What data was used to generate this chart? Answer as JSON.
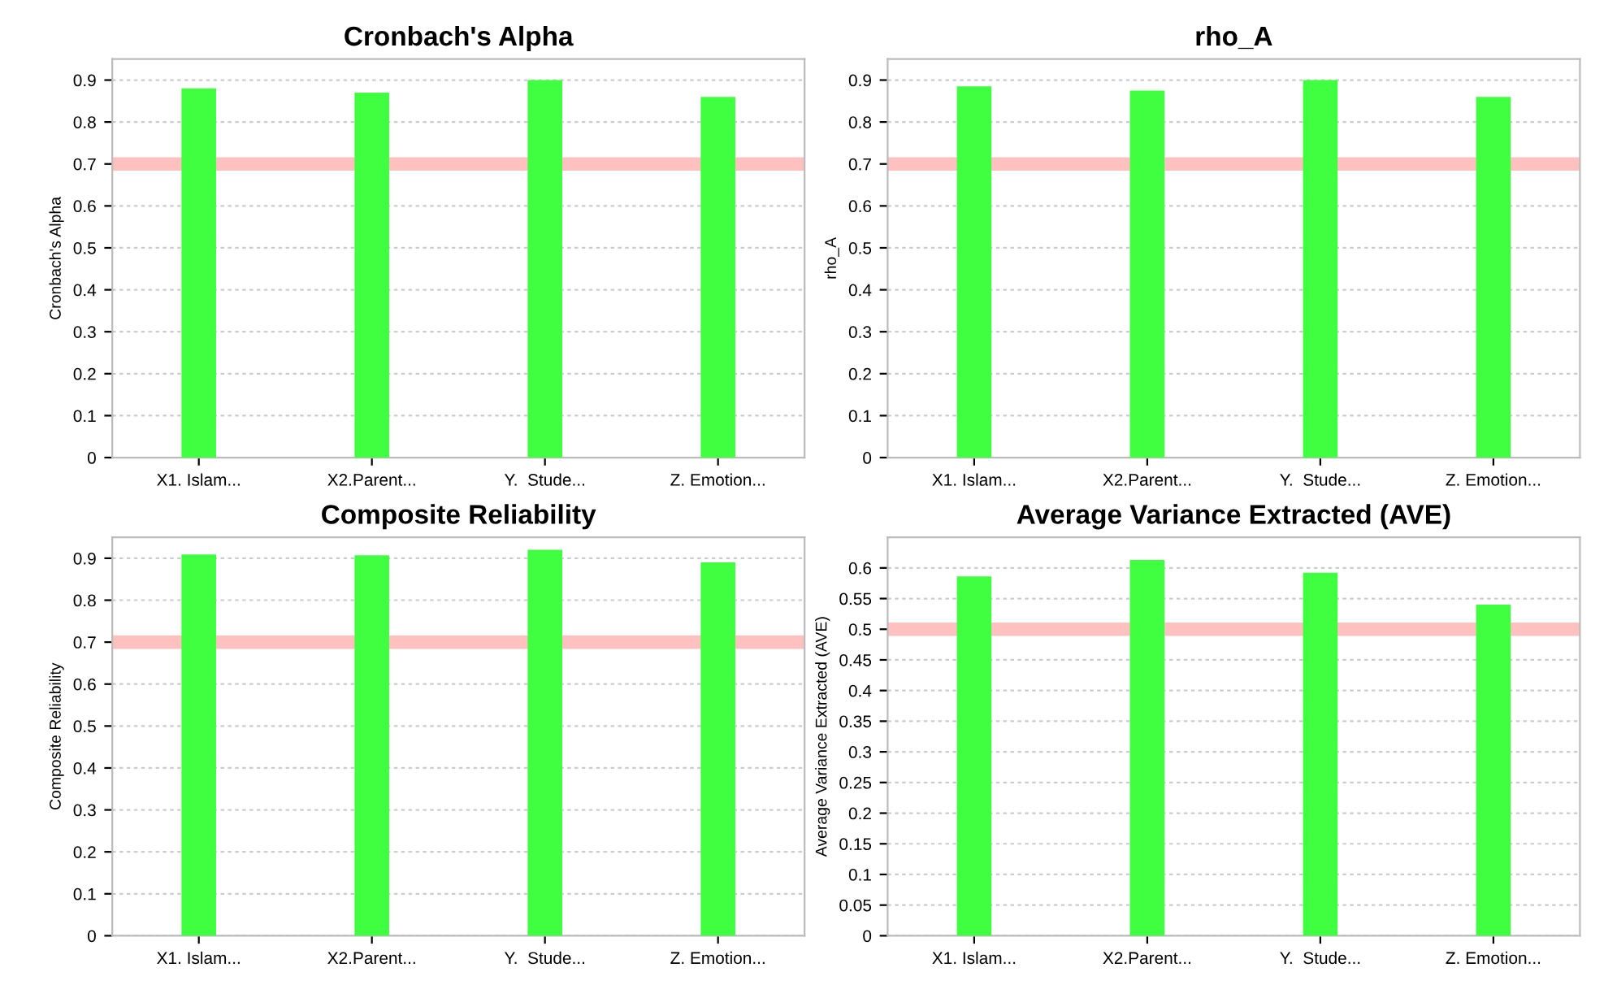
{
  "chart_data": [
    {
      "type": "bar",
      "title": "Cronbach's Alpha",
      "ylabel": "Cronbach's Alpha",
      "categories": [
        "X1. Islam...",
        "X2.Parent...",
        "Y.  Stude...",
        "Z. Emotion..."
      ],
      "values": [
        0.88,
        0.87,
        0.9,
        0.86
      ],
      "color": "#40ff40",
      "ylim": [
        0,
        0.95
      ],
      "yticks": [
        0,
        0.1,
        0.2,
        0.3,
        0.4,
        0.5,
        0.6,
        0.7,
        0.8,
        0.9
      ],
      "grid": "y",
      "ref_lines": [
        {
          "axis": "y",
          "value": 0.7,
          "color": "#ffc0c0"
        }
      ]
    },
    {
      "type": "bar",
      "title": "rho_A",
      "ylabel": "rho_A",
      "categories": [
        "X1. Islam...",
        "X2.Parent...",
        "Y.  Stude...",
        "Z. Emotion..."
      ],
      "values": [
        0.885,
        0.875,
        0.9,
        0.86
      ],
      "color": "#40ff40",
      "ylim": [
        0,
        0.95
      ],
      "yticks": [
        0,
        0.1,
        0.2,
        0.3,
        0.4,
        0.5,
        0.6,
        0.7,
        0.8,
        0.9
      ],
      "grid": "y",
      "ref_lines": [
        {
          "axis": "y",
          "value": 0.7,
          "color": "#ffc0c0"
        }
      ]
    },
    {
      "type": "bar",
      "title": "Composite Reliability",
      "ylabel": "Composite Reliability",
      "categories": [
        "X1. Islam...",
        "X2.Parent...",
        "Y.  Stude...",
        "Z. Emotion..."
      ],
      "values": [
        0.909,
        0.907,
        0.92,
        0.89
      ],
      "color": "#40ff40",
      "ylim": [
        0,
        0.95
      ],
      "yticks": [
        0,
        0.1,
        0.2,
        0.3,
        0.4,
        0.5,
        0.6,
        0.7,
        0.8,
        0.9
      ],
      "grid": "y",
      "ref_lines": [
        {
          "axis": "y",
          "value": 0.7,
          "color": "#ffc0c0"
        }
      ]
    },
    {
      "type": "bar",
      "title": "Average Variance Extracted (AVE)",
      "ylabel": "Average Variance Extracted (AVE)",
      "categories": [
        "X1. Islam...",
        "X2.Parent...",
        "Y.  Stude...",
        "Z. Emotion..."
      ],
      "values": [
        0.586,
        0.613,
        0.592,
        0.54
      ],
      "color": "#40ff40",
      "ylim": [
        0,
        0.65
      ],
      "yticks": [
        0,
        0.05,
        0.1,
        0.15,
        0.2,
        0.25,
        0.3,
        0.35,
        0.4,
        0.45,
        0.5,
        0.55,
        0.6
      ],
      "grid": "y",
      "ref_lines": [
        {
          "axis": "y",
          "value": 0.5,
          "color": "#ffc0c0"
        }
      ]
    }
  ]
}
